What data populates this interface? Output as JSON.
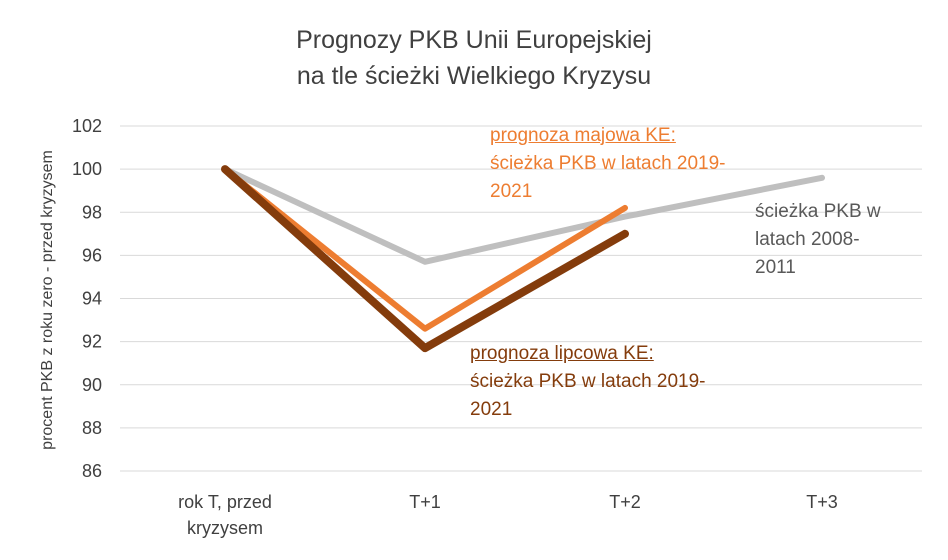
{
  "chart_data": {
    "type": "line",
    "title_lines": [
      "Prognozy PKB Unii Europejskiej",
      "na tle ścieżki Wielkiego Kryzysu"
    ],
    "ylabel": "procent PKB z roku zero - przed kryzysem",
    "xlabel": "",
    "categories": [
      "rok T, przed kryzysem",
      "T+1",
      "T+2",
      "T+3"
    ],
    "category_lines": [
      [
        "rok T, przed",
        "kryzysem"
      ],
      [
        "T+1"
      ],
      [
        "T+2"
      ],
      [
        "T+3"
      ]
    ],
    "ylim": [
      86,
      102
    ],
    "yticks": [
      86,
      88,
      90,
      92,
      94,
      96,
      98,
      100,
      102
    ],
    "grid": true,
    "legend": "none",
    "series": [
      {
        "values": [
          100,
          95.7,
          97.8,
          99.6
        ],
        "color": "#BFBFBF"
      },
      {
        "values": [
          100,
          92.6,
          98.2,
          null
        ],
        "color": "#ED7D31"
      },
      {
        "values": [
          100,
          91.7,
          97.0,
          null
        ],
        "color": "#843C0C"
      }
    ],
    "annotations": {
      "orange": {
        "head": "prognoza majowa KE:",
        "lines": [
          "ścieżka PKB w latach 2019-",
          "2021"
        ],
        "color": "#ED7D31"
      },
      "brown": {
        "head": "prognoza lipcowa KE:",
        "lines": [
          "ścieżka PKB w latach 2019-",
          "2021"
        ],
        "color": "#843C0C"
      },
      "gray": {
        "lines": [
          "ścieżka PKB w",
          "latach 2008-",
          "2011"
        ],
        "color": "#595959"
      }
    }
  }
}
